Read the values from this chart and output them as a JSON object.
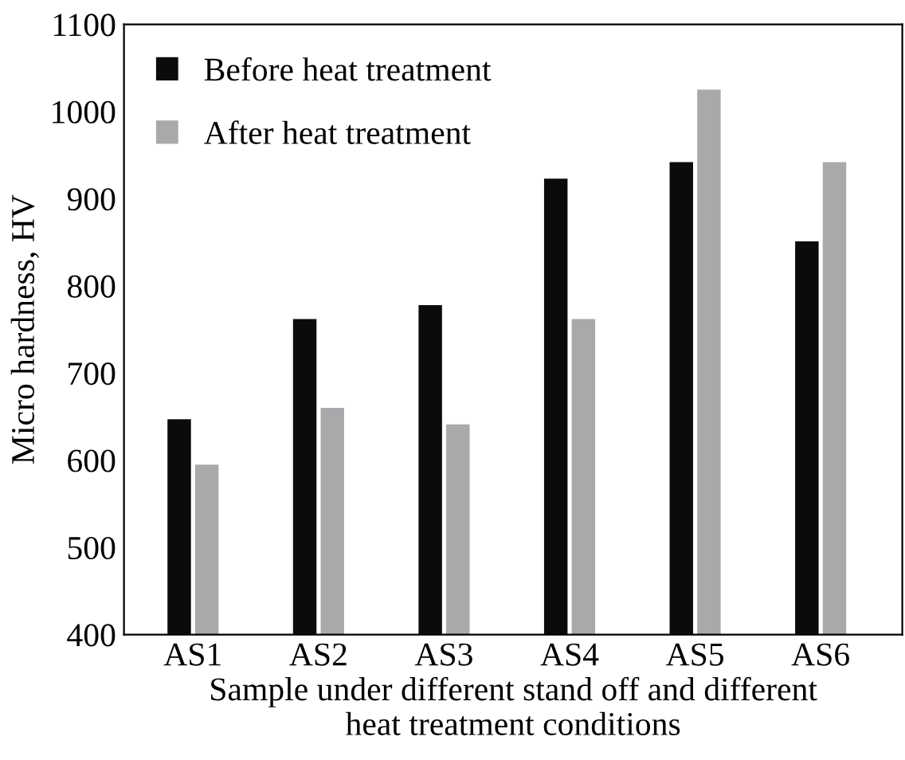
{
  "chart_data": {
    "type": "bar",
    "xlabel": "Sample under different stand off and different\nheat treatment conditions",
    "ylabel": "Micro hardness, HV",
    "categories": [
      "AS1",
      "AS2",
      "AS3",
      "AS4",
      "AS5",
      "AS6"
    ],
    "series": [
      {
        "name": "Before heat treatment",
        "color": "#0a0c0c",
        "values": [
          647,
          762,
          778,
          923,
          942,
          851
        ]
      },
      {
        "name": "After heat treatment",
        "color": "#a9a8ab",
        "values": [
          595,
          660,
          641,
          762,
          1025,
          942
        ]
      }
    ],
    "ylim": [
      400,
      1100
    ],
    "yticks": [
      400,
      500,
      600,
      700,
      800,
      900,
      1000,
      1100
    ],
    "grid": false,
    "legend": "top left"
  }
}
